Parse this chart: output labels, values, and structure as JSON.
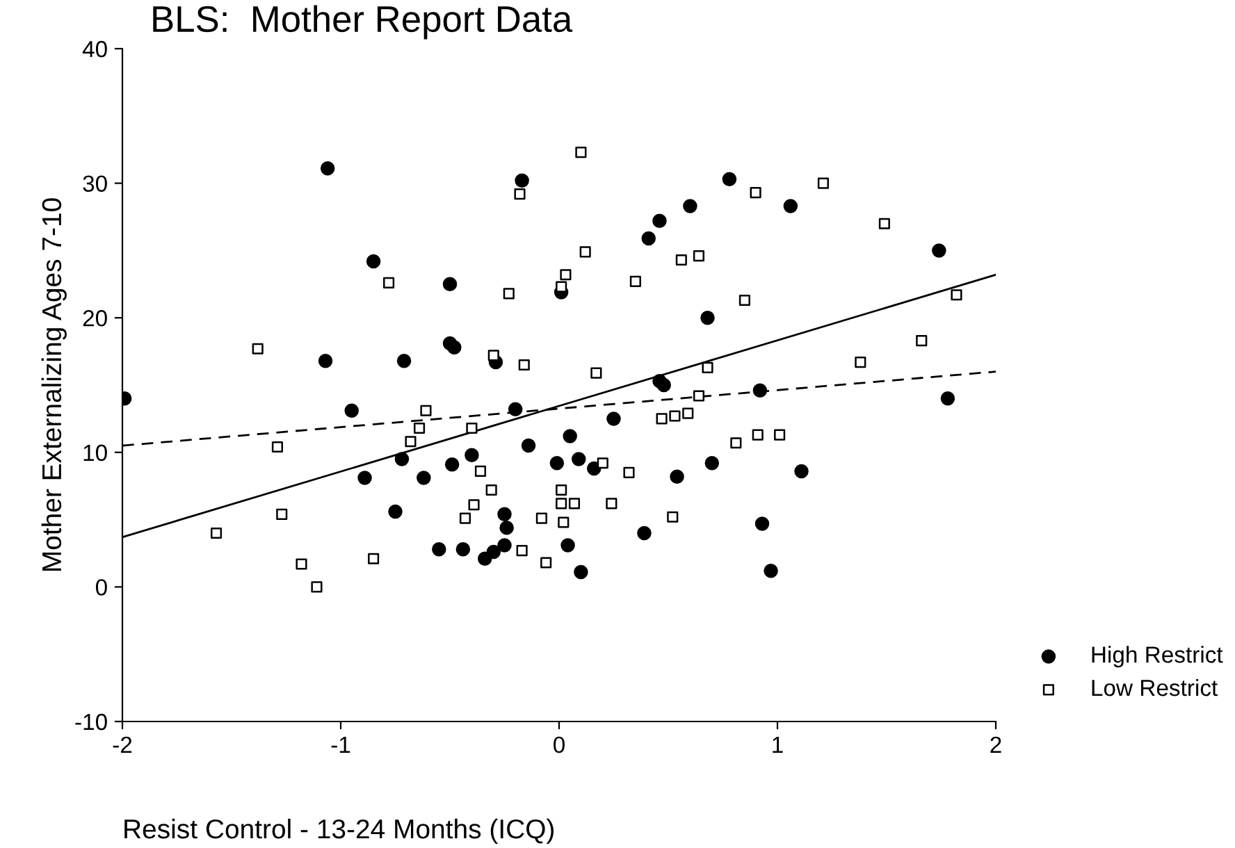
{
  "chart_data": {
    "type": "scatter",
    "title": "BLS:  Mother Report Data",
    "xlabel": "Resist Control - 13-24 Months (ICQ)",
    "ylabel": "Mother Externalizing Ages 7-10",
    "xlim": [
      -2,
      2
    ],
    "ylim": [
      -10,
      40
    ],
    "xticks": [
      -2,
      -1,
      0,
      1,
      2
    ],
    "yticks": [
      -10,
      0,
      10,
      20,
      30,
      40
    ],
    "grid": false,
    "legend": "bottom right",
    "series": [
      {
        "name": "High Restrict",
        "color": "#000000",
        "marker": "circle",
        "x": [
          -1.99,
          -1.06,
          -0.17,
          -0.85,
          -0.5,
          0.01,
          -0.5,
          -0.48,
          -1.07,
          -0.71,
          -0.29,
          -0.95,
          -0.2,
          -0.72,
          -0.89,
          -0.62,
          -0.49,
          -0.4,
          -0.14,
          -0.01,
          -0.75,
          -0.25,
          -0.24,
          -0.55,
          -0.44,
          -0.34,
          -0.3,
          -0.25,
          0.05,
          0.09,
          0.16,
          0.25,
          0.54,
          0.7,
          1.11,
          0.39,
          0.93,
          0.04,
          0.1,
          0.97,
          0.92,
          1.78,
          0.46,
          0.48,
          0.68,
          0.41,
          0.46,
          0.6,
          0.78,
          1.06,
          1.74
        ],
        "values": [
          14.0,
          31.1,
          30.2,
          24.2,
          22.5,
          21.9,
          18.1,
          17.8,
          16.8,
          16.8,
          16.7,
          13.1,
          13.2,
          9.5,
          8.1,
          8.1,
          9.1,
          9.8,
          10.5,
          9.2,
          5.6,
          5.4,
          4.4,
          2.8,
          2.8,
          2.1,
          2.6,
          3.1,
          11.2,
          9.5,
          8.8,
          12.5,
          8.2,
          9.2,
          8.6,
          4.0,
          4.7,
          3.1,
          1.1,
          1.2,
          14.6,
          14.0,
          15.3,
          15.0,
          20.0,
          25.9,
          27.2,
          28.3,
          30.3,
          28.3,
          25.0
        ]
      },
      {
        "name": "Low Restrict",
        "color": "#000000",
        "marker": "square",
        "x": [
          -0.18,
          -0.78,
          -0.23,
          0.03,
          -1.38,
          -0.3,
          -0.16,
          0.1,
          0.9,
          1.21,
          1.49,
          0.12,
          0.56,
          0.64,
          0.01,
          0.35,
          0.85,
          1.82,
          1.66,
          1.38,
          0.17,
          0.68,
          0.64,
          0.47,
          0.53,
          0.59,
          0.81,
          0.91,
          1.01,
          0.2,
          0.32,
          0.01,
          0.01,
          0.07,
          0.24,
          0.02,
          0.52,
          -0.61,
          -0.64,
          -0.68,
          -0.4,
          -1.29,
          -0.36,
          -0.31,
          -0.39,
          -0.43,
          -0.08,
          -1.27,
          -1.57,
          -0.17,
          -0.06,
          -0.85,
          -1.18,
          -1.11
        ],
        "values": [
          29.2,
          22.6,
          21.8,
          23.2,
          17.7,
          17.2,
          16.5,
          32.3,
          29.3,
          30.0,
          27.0,
          24.9,
          24.3,
          24.6,
          22.3,
          22.7,
          21.3,
          21.7,
          18.3,
          16.7,
          15.9,
          16.3,
          14.2,
          12.5,
          12.7,
          12.9,
          10.7,
          11.3,
          11.3,
          9.2,
          8.5,
          7.2,
          6.2,
          6.2,
          6.2,
          4.8,
          5.2,
          13.1,
          11.8,
          10.8,
          11.8,
          10.4,
          8.6,
          7.2,
          6.1,
          5.1,
          5.1,
          5.4,
          4.0,
          2.7,
          1.8,
          2.1,
          1.7,
          0.0
        ]
      },
      {
        "type": "line",
        "color": "#000000",
        "line_style": "dashed",
        "x": [
          -2,
          2
        ],
        "values": [
          10.5,
          16.0
        ]
      },
      {
        "type": "line",
        "color": "#000000",
        "line_style": "solid",
        "x": [
          -2,
          2
        ],
        "values": [
          3.7,
          23.2
        ]
      }
    ]
  }
}
